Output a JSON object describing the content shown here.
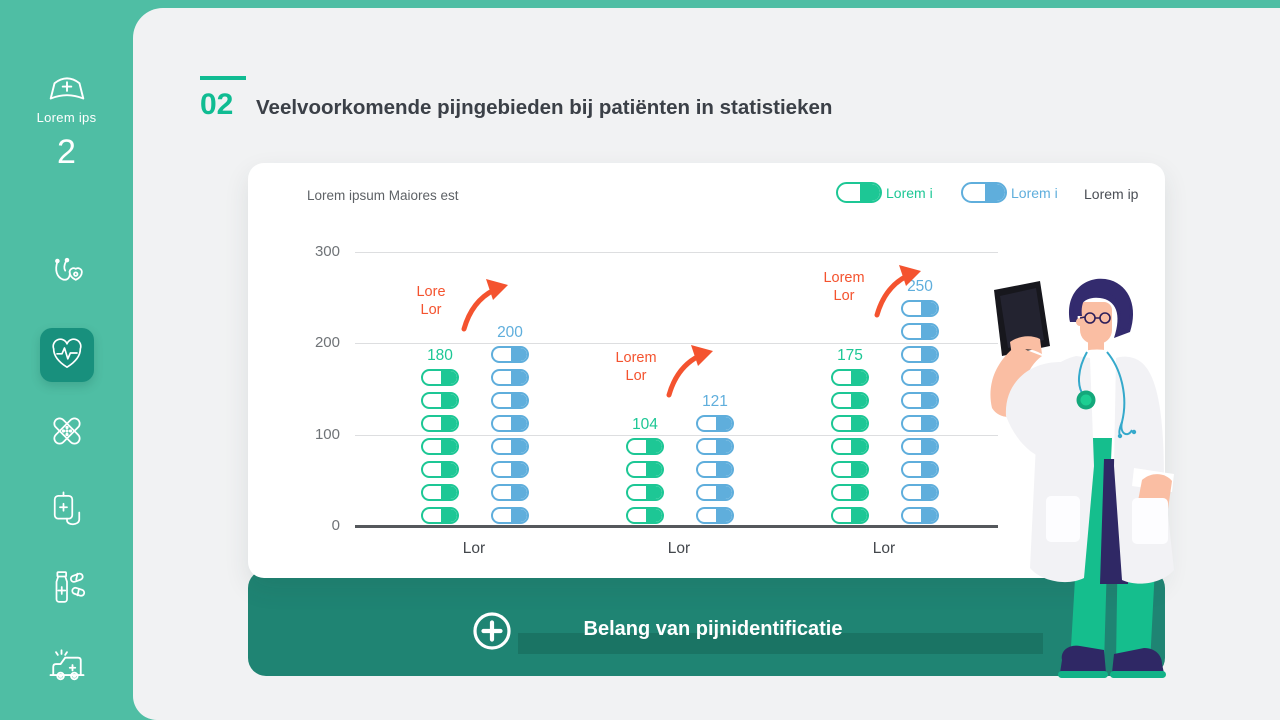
{
  "sidebar": {
    "brand_label": "Lorem ips",
    "page_number": "2",
    "items": [
      {
        "icon": "stethoscope-heart-icon",
        "active": false
      },
      {
        "icon": "heart-pulse-icon",
        "active": true
      },
      {
        "icon": "bandage-icon",
        "active": false
      },
      {
        "icon": "iv-drip-icon",
        "active": false
      },
      {
        "icon": "medicine-bottle-icon",
        "active": false
      },
      {
        "icon": "ambulance-icon",
        "active": false
      }
    ]
  },
  "header": {
    "index": "02",
    "title": "Veelvoorkomende pijngebieden bij patiënten in statistieken"
  },
  "chart_card": {
    "subtitle": "Lorem ipsum Maiores est",
    "legend": [
      {
        "label": "Lorem i",
        "color": "#1DC795",
        "capsule": true
      },
      {
        "label": "Lorem i",
        "color": "#5FAEDC",
        "capsule": true
      },
      {
        "label": "Lorem ip",
        "color": "#4A4E55",
        "capsule": false
      }
    ]
  },
  "chart_data": {
    "type": "bar",
    "subtype": "pictograph-pill-stacks",
    "categories": [
      "Lor",
      "Lor",
      "Lor"
    ],
    "series": [
      {
        "name": "Lorem i",
        "color": "#1DC795",
        "values": [
          180,
          104,
          175
        ]
      },
      {
        "name": "Lorem i",
        "color": "#5FAEDC",
        "values": [
          200,
          121,
          250
        ]
      }
    ],
    "units_per_pill": 25,
    "ylim": [
      0,
      300
    ],
    "yticks": [
      0,
      100,
      200,
      300
    ],
    "grid": true,
    "legend_position": "top-right",
    "annotations": [
      {
        "lines": [
          "Lore",
          "Lor"
        ],
        "color": "#F4532F",
        "group": 0
      },
      {
        "lines": [
          "Lorem",
          "Lor"
        ],
        "color": "#F4532F",
        "group": 1
      },
      {
        "lines": [
          "Lorem",
          "Lor"
        ],
        "color": "#F4532F",
        "group": 2
      }
    ]
  },
  "footer": {
    "label": "Belang van pijnidentificatie"
  },
  "colors": {
    "sidebar_green": "#4FBEA4",
    "active_tile": "#18907D",
    "accent_green": "#10BC92",
    "pill_green": "#1DC795",
    "pill_blue": "#5FAEDC",
    "annotation_orange": "#F4532F",
    "footer_teal": "#1F8473",
    "title_dark": "#3B4047"
  }
}
